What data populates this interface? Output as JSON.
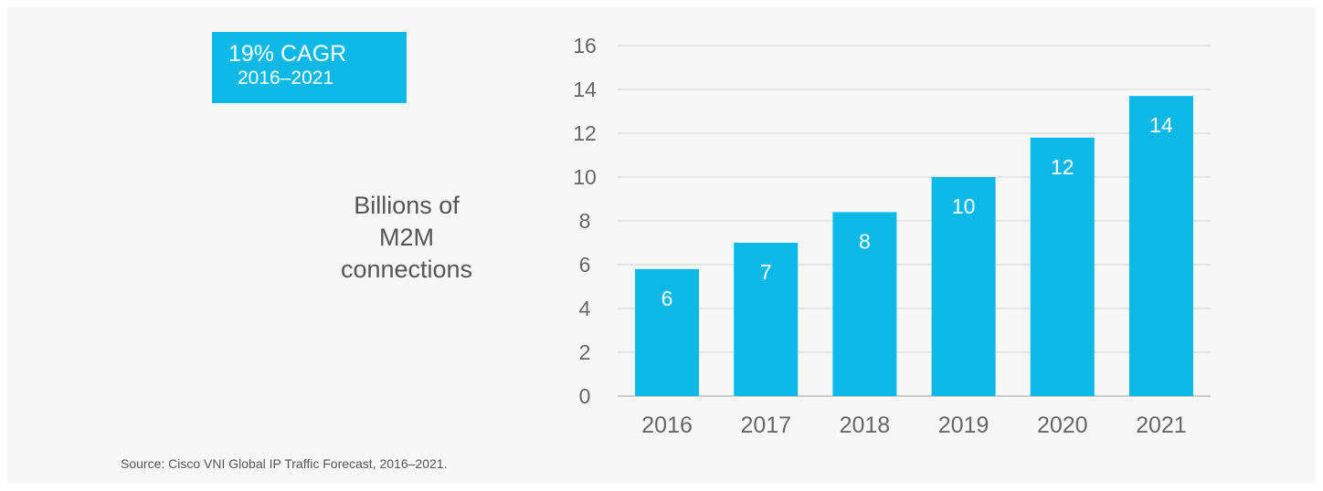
{
  "callout": {
    "title": "19% CAGR",
    "subtitle": "2016–2021"
  },
  "source": "Source: Cisco VNI Global IP Traffic Forecast, 2016–2021.",
  "chart_data": {
    "type": "bar",
    "title": "",
    "ylabel": "Billions of M2M connections",
    "ylabel_lines": [
      "Billions of",
      "M2M",
      "connections"
    ],
    "xlabel": "",
    "categories": [
      "2016",
      "2017",
      "2018",
      "2019",
      "2020",
      "2021"
    ],
    "values": [
      5.8,
      7.0,
      8.4,
      10.0,
      11.8,
      13.7
    ],
    "data_labels": [
      "6",
      "7",
      "8",
      "10",
      "12",
      "14"
    ],
    "ylim": [
      0,
      16
    ],
    "yticks": [
      0,
      2,
      4,
      6,
      8,
      10,
      12,
      14,
      16
    ],
    "grid": true,
    "legend": "none",
    "colors": {
      "bar": "#0cb8e6",
      "grid": "#d9d9d9",
      "axis": "#cccccc"
    }
  }
}
